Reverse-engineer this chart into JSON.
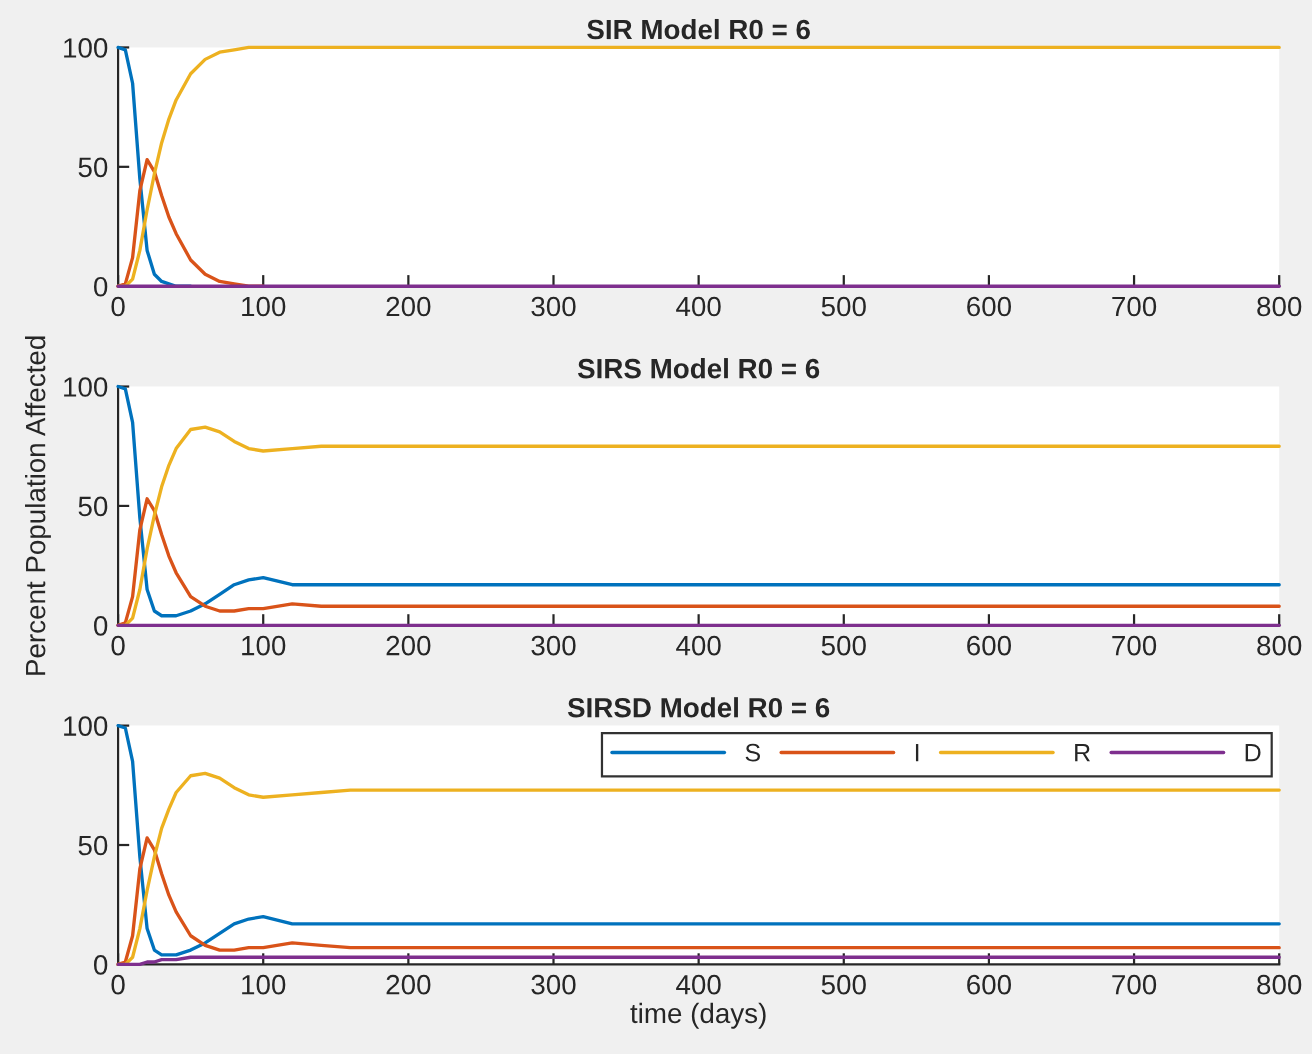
{
  "chart_data": [
    {
      "type": "line",
      "title": "SIR Model R0 = 6",
      "x": [
        0,
        5,
        10,
        15,
        20,
        25,
        30,
        35,
        40,
        50,
        60,
        70,
        80,
        90,
        100,
        120,
        140,
        160,
        200,
        300,
        400,
        500,
        600,
        700,
        800
      ],
      "xlim": [
        0,
        800
      ],
      "xticks": [
        0,
        100,
        200,
        300,
        400,
        500,
        600,
        700,
        800
      ],
      "ylim": [
        0,
        100
      ],
      "yticks": [
        0,
        50,
        100
      ],
      "grid": false,
      "legend": false,
      "series": [
        {
          "color": "#0072bd",
          "values": [
            100,
            99,
            85,
            45,
            15,
            5,
            2,
            1,
            0,
            0,
            null,
            null,
            null,
            null,
            null,
            null,
            null,
            null,
            null,
            null,
            null,
            null,
            null,
            null,
            null
          ]
        },
        {
          "color": "#d95319",
          "values": [
            0,
            1,
            12,
            40,
            53,
            48,
            38,
            29,
            22,
            11,
            5,
            2,
            1,
            0,
            0,
            null,
            null,
            null,
            null,
            null,
            null,
            null,
            null,
            null,
            null
          ]
        },
        {
          "color": "#edb120",
          "values": [
            0,
            0,
            3,
            15,
            32,
            47,
            60,
            70,
            78,
            89,
            95,
            98,
            99,
            100,
            100,
            100,
            100,
            100,
            100,
            100,
            100,
            100,
            100,
            100,
            100
          ]
        },
        {
          "color": "#7e2f8e",
          "values": [
            0,
            0,
            0,
            0,
            0,
            0,
            0,
            0,
            0,
            0,
            0,
            0,
            0,
            0,
            0,
            0,
            0,
            0,
            0,
            0,
            0,
            0,
            0,
            0,
            0
          ]
        }
      ]
    },
    {
      "type": "line",
      "title": "SIRS Model R0 = 6",
      "ylabel": "Percent Population Affected",
      "x": [
        0,
        5,
        10,
        15,
        20,
        25,
        30,
        35,
        40,
        50,
        60,
        70,
        80,
        90,
        100,
        120,
        140,
        160,
        200,
        300,
        400,
        500,
        600,
        700,
        800
      ],
      "xlim": [
        0,
        800
      ],
      "xticks": [
        0,
        100,
        200,
        300,
        400,
        500,
        600,
        700,
        800
      ],
      "ylim": [
        0,
        100
      ],
      "yticks": [
        0,
        50,
        100
      ],
      "grid": false,
      "legend": false,
      "series": [
        {
          "color": "#0072bd",
          "values": [
            100,
            99,
            85,
            45,
            15,
            6,
            4,
            4,
            4,
            6,
            9,
            13,
            17,
            19,
            20,
            17,
            17,
            17,
            17,
            17,
            17,
            17,
            17,
            17,
            17
          ]
        },
        {
          "color": "#d95319",
          "values": [
            0,
            1,
            12,
            40,
            53,
            48,
            38,
            29,
            22,
            12,
            8,
            6,
            6,
            7,
            7,
            9,
            8,
            8,
            8,
            8,
            8,
            8,
            8,
            8,
            8
          ]
        },
        {
          "color": "#edb120",
          "values": [
            0,
            0,
            3,
            15,
            32,
            46,
            58,
            67,
            74,
            82,
            83,
            81,
            77,
            74,
            73,
            74,
            75,
            75,
            75,
            75,
            75,
            75,
            75,
            75,
            75
          ]
        },
        {
          "color": "#7e2f8e",
          "values": [
            0,
            0,
            0,
            0,
            0,
            0,
            0,
            0,
            0,
            0,
            0,
            0,
            0,
            0,
            0,
            0,
            0,
            0,
            0,
            0,
            0,
            0,
            0,
            0,
            0
          ]
        }
      ]
    },
    {
      "type": "line",
      "title": "SIRSD Model R0 = 6",
      "xlabel": "time (days)",
      "x": [
        0,
        5,
        10,
        15,
        20,
        25,
        30,
        35,
        40,
        50,
        60,
        70,
        80,
        90,
        100,
        120,
        140,
        160,
        200,
        300,
        400,
        500,
        600,
        700,
        800
      ],
      "xlim": [
        0,
        800
      ],
      "xticks": [
        0,
        100,
        200,
        300,
        400,
        500,
        600,
        700,
        800
      ],
      "ylim": [
        0,
        100
      ],
      "yticks": [
        0,
        50,
        100
      ],
      "grid": false,
      "legend": "top right",
      "series": [
        {
          "name": "S",
          "color": "#0072bd",
          "values": [
            100,
            99,
            85,
            45,
            15,
            6,
            4,
            4,
            4,
            6,
            9,
            13,
            17,
            19,
            20,
            17,
            17,
            17,
            17,
            17,
            17,
            17,
            17,
            17,
            17
          ]
        },
        {
          "name": "I",
          "color": "#d95319",
          "values": [
            0,
            1,
            12,
            40,
            53,
            48,
            38,
            29,
            22,
            12,
            8,
            6,
            6,
            7,
            7,
            9,
            8,
            7,
            7,
            7,
            7,
            7,
            7,
            7,
            7
          ]
        },
        {
          "name": "R",
          "color": "#edb120",
          "values": [
            0,
            0,
            3,
            15,
            31,
            45,
            57,
            65,
            72,
            79,
            80,
            78,
            74,
            71,
            70,
            71,
            72,
            73,
            73,
            73,
            73,
            73,
            73,
            73,
            73
          ]
        },
        {
          "name": "D",
          "color": "#7e2f8e",
          "values": [
            0,
            0,
            0,
            0,
            1,
            1,
            2,
            2,
            2,
            3,
            3,
            3,
            3,
            3,
            3,
            3,
            3,
            3,
            3,
            3,
            3,
            3,
            3,
            3,
            3
          ]
        }
      ]
    }
  ]
}
